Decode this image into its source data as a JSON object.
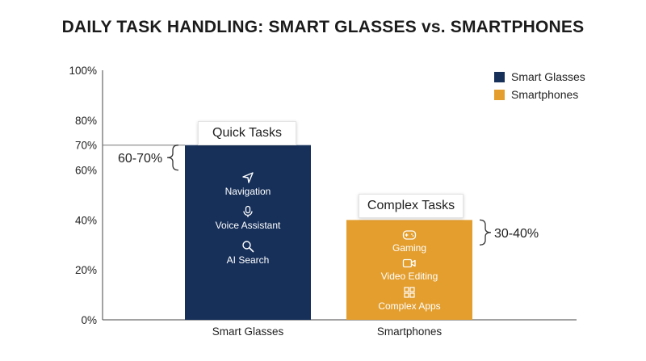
{
  "chart_data": {
    "type": "bar",
    "title": "DAILY TASK HANDLING: SMART GLASSES vs. SMARTPHONES",
    "categories": [
      "Smart Glasses",
      "Smartphones"
    ],
    "values": [
      70,
      40
    ],
    "ylim": [
      0,
      100
    ],
    "yticks": [
      "0%",
      "20%",
      "40%",
      "60%",
      "70%",
      "80%",
      "100%"
    ],
    "ytick_values": [
      0,
      20,
      40,
      60,
      70,
      80,
      100
    ],
    "legend": [
      {
        "name": "Smart Glasses",
        "color": "#17305a"
      },
      {
        "name": "Smartphones",
        "color": "#e39e2e"
      }
    ],
    "legend_position": "top-right",
    "grid": false,
    "annotations": {
      "smart_glasses": {
        "tag": "Quick Tasks",
        "range": "60-70%",
        "range_values": [
          60,
          70
        ],
        "items": [
          {
            "label": "Navigation",
            "icon": "navigation-arrow-icon"
          },
          {
            "label": "Voice Assistant",
            "icon": "microphone-icon"
          },
          {
            "label": "AI Search",
            "icon": "search-icon"
          }
        ]
      },
      "smartphones": {
        "tag": "Complex Tasks",
        "range": "30-40%",
        "range_values": [
          30,
          40
        ],
        "items": [
          {
            "label": "Gaming",
            "icon": "gamepad-icon"
          },
          {
            "label": "Video Editing",
            "icon": "video-camera-icon"
          },
          {
            "label": "Complex Apps",
            "icon": "apps-grid-icon"
          }
        ]
      }
    }
  }
}
